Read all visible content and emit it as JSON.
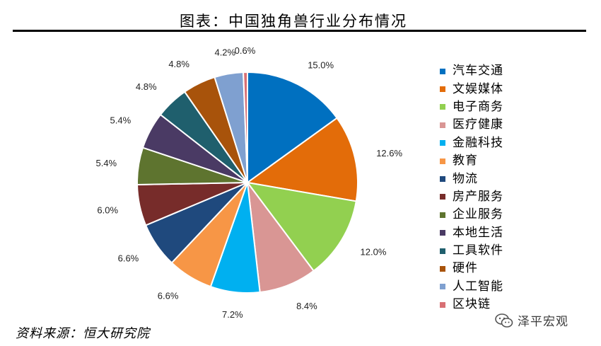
{
  "header": {
    "title": "图表：中国独角兽行业分布情况"
  },
  "footer": {
    "source": "资料来源：恒大研究院"
  },
  "watermark": {
    "text": "泽平宏观",
    "icon": "wechat-icon"
  },
  "chart_data": {
    "type": "pie",
    "title": "图表：中国独角兽行业分布情况",
    "legend_placement": "right",
    "slices": [
      {
        "label": "汽车交通",
        "value": 15.0,
        "display": "15.0%",
        "color": "#0070C0"
      },
      {
        "label": "文娱媒体",
        "value": 12.6,
        "display": "12.6%",
        "color": "#E36C09"
      },
      {
        "label": "电子商务",
        "value": 12.0,
        "display": "12.0%",
        "color": "#92D050"
      },
      {
        "label": "医疗健康",
        "value": 8.4,
        "display": "8.4%",
        "color": "#D99694"
      },
      {
        "label": "金融科技",
        "value": 7.2,
        "display": "7.2%",
        "color": "#00B0F0"
      },
      {
        "label": "教育",
        "value": 6.6,
        "display": "6.6%",
        "color": "#F79646"
      },
      {
        "label": "物流",
        "value": 6.6,
        "display": "6.6%",
        "color": "#1F497D"
      },
      {
        "label": "房产服务",
        "value": 6.0,
        "display": "6.0%",
        "color": "#772C2A"
      },
      {
        "label": "企业服务",
        "value": 5.4,
        "display": "5.4%",
        "color": "#5E742F"
      },
      {
        "label": "本地生活",
        "value": 5.4,
        "display": "5.4%",
        "color": "#4A3A64"
      },
      {
        "label": "工具软件",
        "value": 4.8,
        "display": "4.8%",
        "color": "#1F5F6D"
      },
      {
        "label": "硬件",
        "value": 4.8,
        "display": "4.8%",
        "color": "#A8530B"
      },
      {
        "label": "人工智能",
        "value": 4.2,
        "display": "4.2%",
        "color": "#7FA0D0"
      },
      {
        "label": "区块链",
        "value": 0.6,
        "display": "0.6%",
        "color": "#D87074"
      }
    ]
  }
}
